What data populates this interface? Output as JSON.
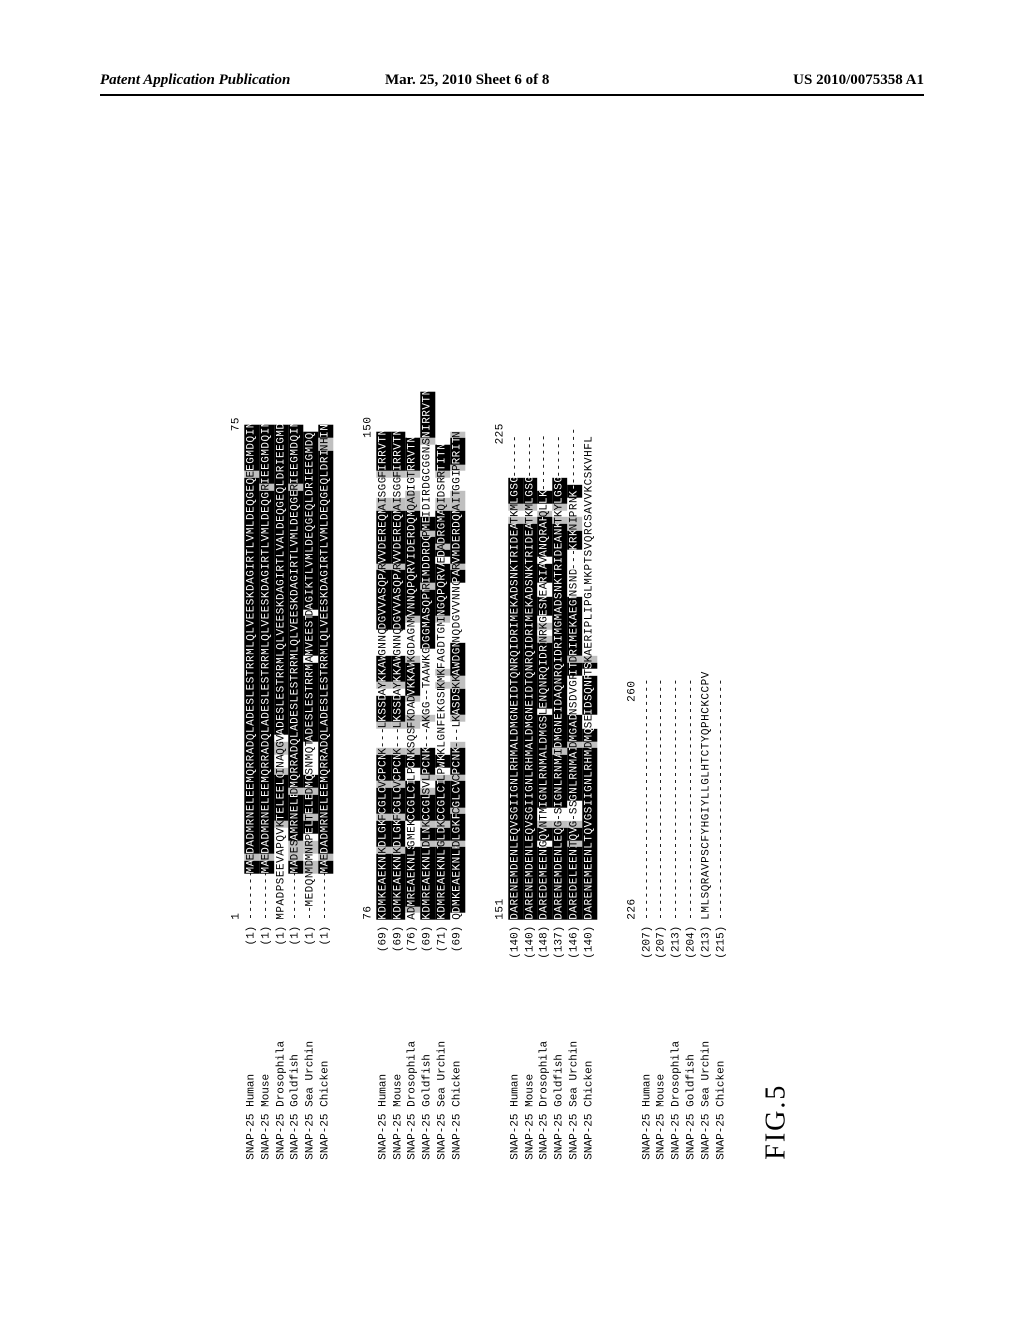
{
  "header": {
    "left": "Patent Application Publication",
    "mid": "Mar. 25, 2010  Sheet 6 of 8",
    "right": "US 2010/0075358 A1"
  },
  "figure_label": "FIG.5",
  "legend": {
    "conserved_bg": "#000000",
    "conserved_fg": "#ffffff",
    "similar_bg": "#bfbfbf",
    "similar_fg": "#000000",
    "plain_bg": "#ffffff",
    "plain_fg": "#000000",
    "font": "Courier New",
    "fontsize_pt": 8
  },
  "blocks": [
    {
      "ruler_left": "1",
      "ruler_right": "75",
      "rows": [
        {
          "label": "SNAP-25 Human",
          "pos": "(1)",
          "seq": "-------MAEDADMRNELEEMQRRADQLADESLESTRRMLQLVEESKDAGIRTLVMLDEQGEQLERIEEGMDQIN",
          "cls": "gggggggccscccccccccccccccccccccccccccccccccccccccccccccccccccccccccsccccccc"
        },
        {
          "label": "SNAP-25 Mouse",
          "pos": "(1)",
          "seq": "-------MAEDADMRNELEEMQRRADQLADESLESTRRMLQLVEESKDAGIRTLVMLDEQGEQLDRIEEGMDQIN",
          "cls": "gggggggccscccccccccccccccccccccccccccccccccccccccccccccccccccccccsccccccccc"
        },
        {
          "label": "SNAP-25 Drosophila",
          "pos": "(1)",
          "seq": "MPADPSEEVAPQVPKTELEELQINAQGVADESLESTRRMLQLVEESKDAGIRTLVALDEQGEQLDRIEEGMDQIN",
          "cls": "ppppppppppppppscccccccsppsspccccccccccccccccccccccccccccccccccccccccccccccc"
        },
        {
          "label": "SNAP-25 Goldfish",
          "pos": "(1)",
          "seq": "-------MADESAMRNELEDMQRRADQLADESLESTRRMLQLVEESKDAGIRTLVMLDEQGEQLERIEEGMDQIN",
          "cls": "gggggggccssscccccccscccccccccccccccccccccccccccccccccccccccccccccsccccccccc"
        },
        {
          "label": "SNAP-25 Sea Urchin",
          "pos": "(1)",
          "seq": "--MEDQNMDMNRPELTELEDMQSNMQTADESLESTRRMLAMVEESTDAGIKTLVMLDEQGEQLDRIEEGMDQIN",
          "cls": "ggpppppsspsspccscccsccpppppccccccccccccpccccccpcccccccccccccccccccccccccccc"
        },
        {
          "label": "SNAP-25 Chicken",
          "pos": "(1)",
          "seq": "-------MAEDADMRNELEEMQRRADQLADESLESTRRMLQLVEESKDAGIRTLVMLDEQGEQLDRIEEGMNHIN",
          "cls": "gggggggccscccccccccccccccccccccccccccccccccccccccccccccccccccccccccccccsscc"
        }
      ]
    },
    {
      "ruler_left": "76",
      "ruler_right": "150",
      "rows": [
        {
          "label": "SNAP-25 Human",
          "pos": "(69)",
          "seq": "KDMKEAEKNLKDLGKFCGLCVCPCNK---LKSSDAYKKAWGNNQDGVVASQPARVVDEREQMAISGGFIRRVTN",
          "cls": "ccccccccccsccccsccccsccccsgggsccccpsccccppppcccccccccsccccccccsspppsccccccc"
        },
        {
          "label": "SNAP-25 Mouse",
          "pos": "(69)",
          "seq": "KDMKEAEKNLKDLGKFCGLCVCPCNK---LKSSDAYKKAWGNNQDGVVASQPARVVDEREQMAISGGFIRRVTN",
          "cls": "ccccccccccsccccsccccsccccsgggsccccpsccccppppcccccccccsccccccccsspppsccccccc"
        },
        {
          "label": "SNAP-25 Drosophila",
          "pos": "(76)",
          "seq": "ADMREAEKNLSGMEKCCGLCILPCNKSQSFKDADVKKAWKGDAGNMVNNQPQRVIDERDQMAQADIGTRRVTN",
          "cls": "pscccccccccppppccccccppccspppssppscccccspppppsccccccccccccccccsssppsccccccc"
        },
        {
          "label": "SNAP-25 Goldfish",
          "pos": "(69)",
          "seq": "KDMREAEKNLKDLNKCCGLSVLPCNK---AKGG--TAAWKGDGGMASQPNRIMDDRDQPMEIDIRDGCGGNASNIRRVTN",
          "cls": "cccccccccccsccsccccspsccccgggpspppggpppppcccccccccscccccccsccpppppppppppsccccccc"
        },
        {
          "label": "SNAP-25 Sea Urchin",
          "pos": "(71)",
          "seq": "KDMREAEKNLTGLDKCCGLCILPWKKLGNFEKGSDKMKFAGDTGMINGQPQRVAEDADRGMAQIDSRRTITN",
          "cls": "cccccccccccsccsccccccspccppppppppppspspppppppsccccccccpcscccccsspppsccccccc"
        },
        {
          "label": "SNAP-25 Chicken",
          "pos": "(69)",
          "seq": "QDMKEAEKNLKDLGKFCGLCVCPCNK---LKASDSKKAWDGNNQDGVVNNQPARVMDERDQMAITGGIPRRITN",
          "cls": "pccccccccccsccccsccccsccccsgggsccccsscccccpppppppppccsccccccccssspppsccccsc"
        }
      ]
    },
    {
      "ruler_left": "151",
      "ruler_right": "225",
      "rows": [
        {
          "label": "SNAP-25 Human",
          "pos": "(140)",
          "seq": "DARENEMDENLEQVSGIIGNLRHMALDMGNEIDTQNRQIDRIMEKADSNKTRIDEANQRATKMLGSG------",
          "cls": "ccccccccccccccccccccccccccccccccccccccccccccccccccccccccccccspsccccgggggg"
        },
        {
          "label": "SNAP-25 Mouse",
          "pos": "(140)",
          "seq": "DARENEMDENLEQVSGIIGNLRHMALDMGNEIDTQNRQIDRIMEKADSNKTRIDEANQRATKMLGSG------",
          "cls": "ccccccccccccccccccccccccccccccccccccccccccccccccccccccccccccspsccccgggggg"
        },
        {
          "label": "SNAP-25 Drosophila",
          "pos": "(148)",
          "seq": "DAREDEMEENMGQVNTMIGNLRNMALDMGSELENQNRQIDRINRKGESNEARIAVANQRAHQLLK--------",
          "cls": "cccccccccccpccsppccccccccccccccpccccccccccspspcccppcccpccccccspccggggggggg"
        },
        {
          "label": "SNAP-25 Goldfish",
          "pos": "(137)",
          "seq": "DARENEMDENLEQVG-SIGNLRNMAIDMGNEIDAQNRQIDRIMGMADSNKTRIDEANKRATKYLGSG------",
          "cls": "ccccccccccccccsgpccccccccsccccccccccccccccccccccccccccccccccspsccccgggggg"
        },
        {
          "label": "SNAP-25 Sea Urchin",
          "pos": "(146)",
          "seq": "DAREDELEENITQVG-SSGNLRNMAIDMGADNSDVGRITDRIMEKAEGNNSND---KRKNIPRNK---------",
          "cls": "cccccccccccsccsgppccccccccsccccppppppccscccccccccppppgggcccsspppccggggggggg"
        },
        {
          "label": "SNAP-25 Chicken",
          "pos": "(140)",
          "seq": "DARENEMEENLTQVGSIIGNLRHMAIDMQSEIDSQNRTSKAERIPLIPGLMKPTSVQRCSAVVKCSKVHFL",
          "cls": "ccccccccccccccccccccccccccsccppccccccpcspppppppppppppppppppppppppppppppp"
        }
      ]
    },
    {
      "ruler_left": "226",
      "ruler_right": "260",
      "rows": [
        {
          "label": "SNAP-25 Human",
          "pos": "(207)",
          "seq": "----------------------------------",
          "cls": "gggggggggggggggggggggggggggggggggg"
        },
        {
          "label": "SNAP-25 Mouse",
          "pos": "(207)",
          "seq": "----------------------------------",
          "cls": "gggggggggggggggggggggggggggggggggg"
        },
        {
          "label": "SNAP-25 Drosophila",
          "pos": "(213)",
          "seq": "----------------------------------",
          "cls": "gggggggggggggggggggggggggggggggggg"
        },
        {
          "label": "SNAP-25 Goldfish",
          "pos": "(204)",
          "seq": "----------------------------------",
          "cls": "gggggggggggggggggggggggggggggggggg"
        },
        {
          "label": "SNAP-25 Sea Urchin",
          "pos": "(213)",
          "seq": "LMLSQRAVPSCFYHGIYLLGLHTCTYQPHCKCCPV",
          "cls": "ppppppppppppppppppppppppppppppppppp"
        },
        {
          "label": "SNAP-25 Chicken",
          "pos": "(215)",
          "seq": "----------------------------------",
          "cls": "gggggggggggggggggggggggggggggggggg"
        }
      ]
    }
  ]
}
